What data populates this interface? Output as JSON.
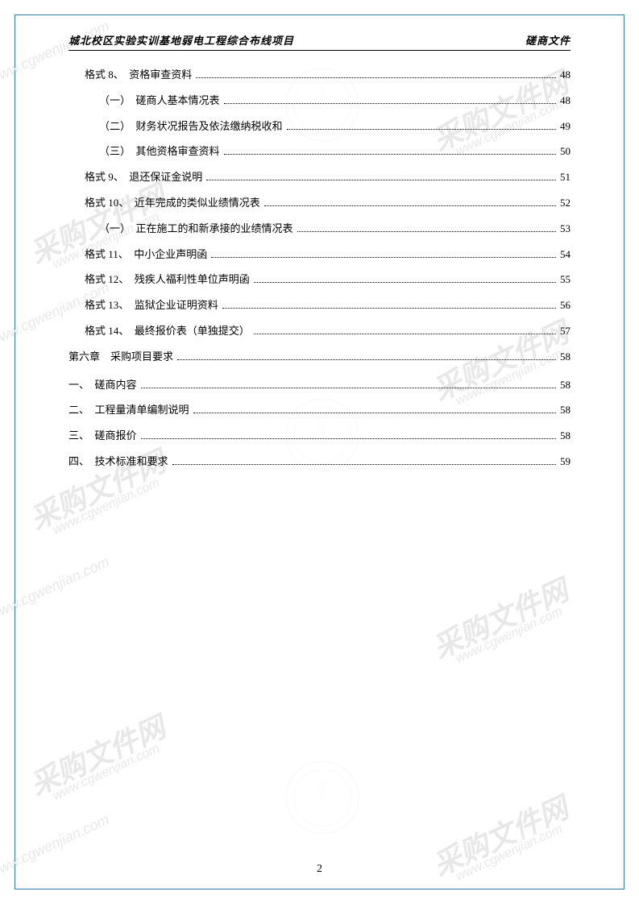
{
  "header": {
    "left": "城北校区实验实训基地弱电工程综合布线项目",
    "right": "磋商文件"
  },
  "toc": [
    {
      "level": "level1",
      "label": "格式 8、　资格审查资料",
      "page": "48"
    },
    {
      "level": "level2",
      "label": "（一）　磋商人基本情况表",
      "page": "48"
    },
    {
      "level": "level2",
      "label": "（二）　财务状况报告及依法缴纳税收和",
      "page": "49"
    },
    {
      "level": "level2",
      "label": "（三）　其他资格审查资料",
      "page": "50"
    },
    {
      "level": "level1",
      "label": "格式 9、　退还保证金说明",
      "page": "51"
    },
    {
      "level": "level1",
      "label": "格式 10、　近年完成的类似业绩情况表",
      "page": "52"
    },
    {
      "level": "level2",
      "label": "（一）　正在施工的和新承接的业绩情况表",
      "page": "53"
    },
    {
      "level": "level1",
      "label": "格式 11、　中小企业声明函",
      "page": "54"
    },
    {
      "level": "level1",
      "label": "格式 12、　残疾人福利性单位声明函",
      "page": "55"
    },
    {
      "level": "level1",
      "label": "格式 13、　监狱企业证明资料",
      "page": "56"
    },
    {
      "level": "level1",
      "label": "格式 14、　最终报价表（单独提交）",
      "page": "57"
    },
    {
      "level": "chapter",
      "label": "第六章　采购项目要求",
      "page": "58"
    },
    {
      "level": "sect",
      "label": "一、　磋商内容",
      "page": "58"
    },
    {
      "level": "sect",
      "label": "二、　工程量清单编制说明",
      "page": "58"
    },
    {
      "level": "sect",
      "label": "三、　磋商报价",
      "page": "58"
    },
    {
      "level": "sect",
      "label": "四、　技术标准和要求",
      "page": "59"
    }
  ],
  "pageNumber": "2",
  "watermarks": {
    "text": "采购文件网",
    "url": "www.cgwenjian.com",
    "color": "#e8e8e8",
    "logo_color": "#d0d0d0"
  }
}
